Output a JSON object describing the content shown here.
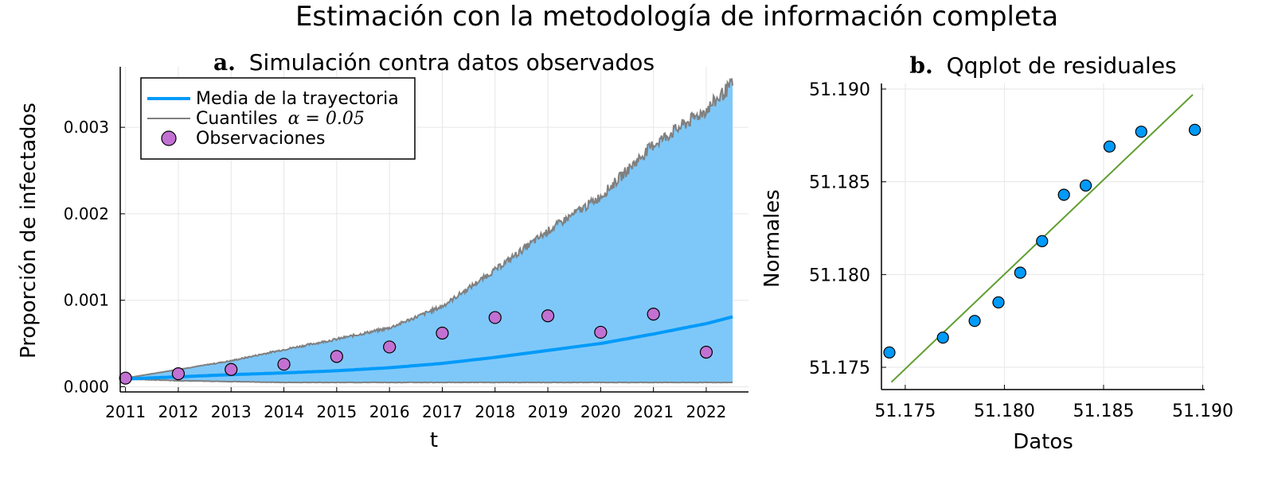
{
  "figure": {
    "title": "Estimación con la metodología de información completa",
    "colors": {
      "band": "#7ec8f9",
      "mean": "#009af9",
      "quantile": "#808080",
      "obs": "#c271d2",
      "qq_points": "#009af9",
      "qq_line": "#5f9e2f",
      "grid": "#e6e6e6"
    }
  },
  "chart_data": [
    {
      "type": "line",
      "panel_prefix": "a.",
      "title": "Simulación contra datos observados",
      "xlabel": "t",
      "ylabel": "Proporción de infectados",
      "xlim": [
        2010.9,
        2022.8
      ],
      "ylim": [
        -6e-05,
        0.0037
      ],
      "grid": true,
      "legend_position": "top-left",
      "x_ticks": [
        "2011",
        "2012",
        "2013",
        "2014",
        "2015",
        "2016",
        "2017",
        "2018",
        "2019",
        "2020",
        "2021",
        "2022"
      ],
      "y_ticks": [
        "0.000",
        "0.001",
        "0.002",
        "0.003"
      ],
      "series": [
        {
          "name": "Media de la trayectoria",
          "kind": "line",
          "x": [
            2011,
            2012,
            2013,
            2014,
            2015,
            2016,
            2017,
            2018,
            2019,
            2020,
            2021,
            2022,
            2022.5
          ],
          "y": [
            9e-05,
            0.000115,
            0.00014,
            0.00016,
            0.000185,
            0.00022,
            0.00027,
            0.00034,
            0.00042,
            0.0005,
            0.00061,
            0.00073,
            0.00081
          ]
        },
        {
          "name": "Cuantiles",
          "name_math": "α = 0.05",
          "kind": "band",
          "x": [
            2011,
            2012,
            2013,
            2014,
            2015,
            2016,
            2017,
            2018,
            2019,
            2020,
            2021,
            2022,
            2022.5
          ],
          "upper": [
            0.0001,
            0.0002,
            0.0003,
            0.00043,
            0.00055,
            0.00068,
            0.00093,
            0.00135,
            0.0018,
            0.0022,
            0.0028,
            0.0032,
            0.0035
          ],
          "lower": [
            9e-05,
            7e-05,
            6e-05,
            5e-05,
            5e-05,
            5e-05,
            5e-05,
            5e-05,
            5e-05,
            5e-05,
            5e-05,
            5e-05,
            5e-05
          ]
        },
        {
          "name": "Observaciones",
          "kind": "scatter",
          "x": [
            2011,
            2012,
            2013,
            2014,
            2015,
            2016,
            2017,
            2018,
            2019,
            2020,
            2021,
            2022
          ],
          "y": [
            0.0001,
            0.00015,
            0.0002,
            0.00026,
            0.00035,
            0.00046,
            0.00062,
            0.0008,
            0.00082,
            0.00063,
            0.00084,
            0.0004
          ]
        }
      ]
    },
    {
      "type": "scatter",
      "panel_prefix": "b.",
      "title": "Qqplot de residuales",
      "xlabel": "Datos",
      "ylabel": "Normales",
      "xlim": [
        51.1738,
        51.1901
      ],
      "ylim": [
        51.1738,
        51.1903
      ],
      "grid": true,
      "x_ticks": [
        "51.175",
        "51.180",
        "51.185",
        "51.190"
      ],
      "y_ticks": [
        "51.175",
        "51.180",
        "51.185",
        "51.190"
      ],
      "points": {
        "x": [
          51.1742,
          51.1769,
          51.1785,
          51.1797,
          51.1808,
          51.1819,
          51.183,
          51.1841,
          51.1853,
          51.1869,
          51.1896
        ],
        "y": [
          51.1758,
          51.1766,
          51.1775,
          51.1785,
          51.1801,
          51.1818,
          51.1843,
          51.1848,
          51.1869,
          51.1877,
          51.1878
        ]
      },
      "reference_line": {
        "x": [
          51.1743,
          51.1895
        ],
        "y": [
          51.1742,
          51.1897
        ]
      }
    }
  ]
}
